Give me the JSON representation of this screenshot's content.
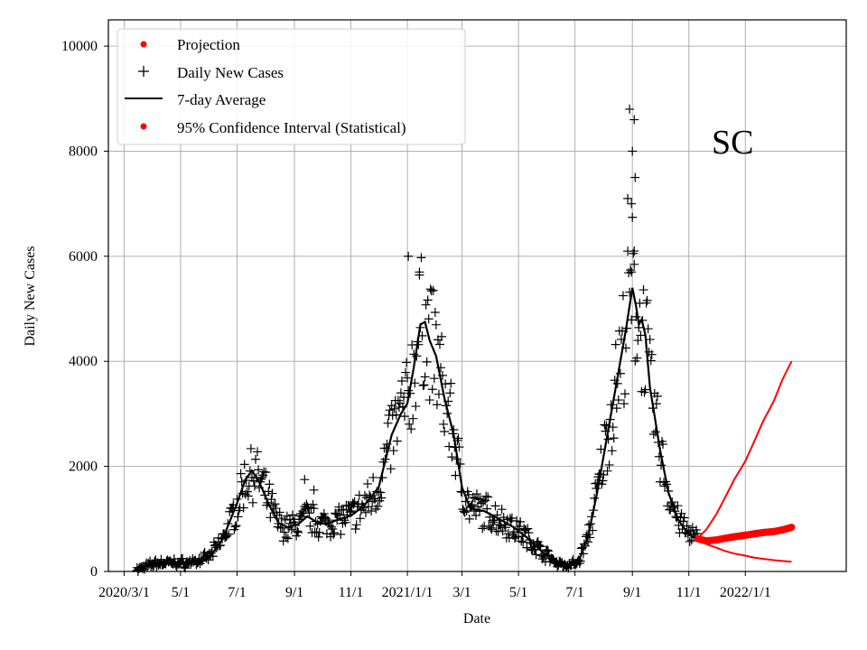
{
  "chart_data": {
    "type": "line",
    "title": "",
    "state_label": "SC",
    "xlabel": "Date",
    "ylabel": "Daily New Cases",
    "xlim": [
      "2020-02-13",
      "2022-04-20"
    ],
    "ylim": [
      0,
      10500
    ],
    "grid": true,
    "legend_position": "top-left",
    "x_ticks": [
      {
        "date": "2020-03-01",
        "label": "2020/3/1"
      },
      {
        "date": "2020-05-01",
        "label": "5/1"
      },
      {
        "date": "2020-07-01",
        "label": "7/1"
      },
      {
        "date": "2020-09-01",
        "label": "9/1"
      },
      {
        "date": "2020-11-01",
        "label": "11/1"
      },
      {
        "date": "2021-01-01",
        "label": "2021/1/1"
      },
      {
        "date": "2021-03-01",
        "label": "3/1"
      },
      {
        "date": "2021-05-01",
        "label": "5/1"
      },
      {
        "date": "2021-07-01",
        "label": "7/1"
      },
      {
        "date": "2021-09-01",
        "label": "9/1"
      },
      {
        "date": "2021-11-01",
        "label": "11/1"
      },
      {
        "date": "2022-01-01",
        "label": "2022/1/1"
      }
    ],
    "y_ticks": [
      {
        "value": 0,
        "label": "0"
      },
      {
        "value": 2000,
        "label": "2000"
      },
      {
        "value": 4000,
        "label": "4000"
      },
      {
        "value": 6000,
        "label": "6000"
      },
      {
        "value": 8000,
        "label": "8000"
      },
      {
        "value": 10000,
        "label": "10000"
      }
    ],
    "legend": [
      {
        "label": "Projection",
        "marker": "dot",
        "color": "#ff0000"
      },
      {
        "label": "Daily New Cases",
        "marker": "plus",
        "color": "#000000"
      },
      {
        "label": "7-day Average",
        "marker": "line",
        "color": "#000000"
      },
      {
        "label": "95% Confidence Interval (Statistical)",
        "marker": "dot",
        "color": "#ff0000"
      }
    ],
    "daily_cases_anchors": [
      [
        "2020-03-15",
        30
      ],
      [
        "2020-03-25",
        100
      ],
      [
        "2020-04-05",
        160
      ],
      [
        "2020-04-20",
        170
      ],
      [
        "2020-05-05",
        160
      ],
      [
        "2020-05-20",
        190
      ],
      [
        "2020-06-01",
        280
      ],
      [
        "2020-06-15",
        600
      ],
      [
        "2020-07-01",
        1250
      ],
      [
        "2020-07-10",
        1750
      ],
      [
        "2020-07-17",
        1900
      ],
      [
        "2020-07-25",
        1750
      ],
      [
        "2020-08-05",
        1300
      ],
      [
        "2020-08-15",
        900
      ],
      [
        "2020-08-25",
        820
      ],
      [
        "2020-09-05",
        900
      ],
      [
        "2020-09-15",
        1050
      ],
      [
        "2020-09-25",
        950
      ],
      [
        "2020-10-05",
        900
      ],
      [
        "2020-10-20",
        1000
      ],
      [
        "2020-11-01",
        1050
      ],
      [
        "2020-11-15",
        1250
      ],
      [
        "2020-12-01",
        1600
      ],
      [
        "2020-12-15",
        2600
      ],
      [
        "2020-12-25",
        3000
      ],
      [
        "2021-01-01",
        3200
      ],
      [
        "2021-01-08",
        3900
      ],
      [
        "2021-01-15",
        4700
      ],
      [
        "2021-01-20",
        4750
      ],
      [
        "2021-01-25",
        4400
      ],
      [
        "2021-02-01",
        4100
      ],
      [
        "2021-02-10",
        3300
      ],
      [
        "2021-02-20",
        2600
      ],
      [
        "2021-03-01",
        1600
      ],
      [
        "2021-03-10",
        1200
      ],
      [
        "2021-03-25",
        1150
      ],
      [
        "2021-04-10",
        1000
      ],
      [
        "2021-04-25",
        850
      ],
      [
        "2021-05-10",
        650
      ],
      [
        "2021-05-25",
        400
      ],
      [
        "2021-06-10",
        180
      ],
      [
        "2021-06-25",
        110
      ],
      [
        "2021-07-05",
        200
      ],
      [
        "2021-07-15",
        650
      ],
      [
        "2021-07-25",
        1500
      ],
      [
        "2021-08-05",
        2600
      ],
      [
        "2021-08-15",
        3600
      ],
      [
        "2021-08-25",
        4600
      ],
      [
        "2021-09-01",
        5400
      ],
      [
        "2021-09-05",
        5050
      ],
      [
        "2021-09-10",
        4650
      ],
      [
        "2021-09-15",
        4500
      ],
      [
        "2021-09-20",
        3500
      ],
      [
        "2021-10-01",
        2300
      ],
      [
        "2021-10-10",
        1500
      ],
      [
        "2021-10-20",
        1000
      ],
      [
        "2021-11-01",
        700
      ],
      [
        "2021-11-10",
        620
      ]
    ],
    "seven_day_average": [
      [
        "2020-03-10",
        0
      ],
      [
        "2020-03-20",
        90
      ],
      [
        "2020-04-01",
        160
      ],
      [
        "2020-04-15",
        165
      ],
      [
        "2020-05-01",
        165
      ],
      [
        "2020-05-15",
        175
      ],
      [
        "2020-06-01",
        270
      ],
      [
        "2020-06-15",
        600
      ],
      [
        "2020-07-01",
        1300
      ],
      [
        "2020-07-10",
        1750
      ],
      [
        "2020-07-17",
        1920
      ],
      [
        "2020-07-25",
        1700
      ],
      [
        "2020-08-05",
        1250
      ],
      [
        "2020-08-15",
        920
      ],
      [
        "2020-08-25",
        840
      ],
      [
        "2020-09-05",
        900
      ],
      [
        "2020-09-15",
        1050
      ],
      [
        "2020-09-25",
        940
      ],
      [
        "2020-10-05",
        900
      ],
      [
        "2020-10-20",
        1000
      ],
      [
        "2020-11-01",
        1060
      ],
      [
        "2020-11-15",
        1250
      ],
      [
        "2020-12-01",
        1600
      ],
      [
        "2020-12-15",
        2600
      ],
      [
        "2020-12-25",
        3000
      ],
      [
        "2021-01-01",
        3200
      ],
      [
        "2021-01-08",
        3900
      ],
      [
        "2021-01-15",
        4700
      ],
      [
        "2021-01-20",
        4750
      ],
      [
        "2021-01-25",
        4400
      ],
      [
        "2021-02-01",
        4100
      ],
      [
        "2021-02-10",
        3300
      ],
      [
        "2021-02-20",
        2600
      ],
      [
        "2021-03-01",
        1600
      ],
      [
        "2021-03-10",
        1200
      ],
      [
        "2021-03-25",
        1150
      ],
      [
        "2021-04-10",
        1000
      ],
      [
        "2021-04-25",
        850
      ],
      [
        "2021-05-10",
        650
      ],
      [
        "2021-05-25",
        400
      ],
      [
        "2021-06-10",
        180
      ],
      [
        "2021-06-25",
        110
      ],
      [
        "2021-07-05",
        200
      ],
      [
        "2021-07-15",
        650
      ],
      [
        "2021-07-25",
        1500
      ],
      [
        "2021-08-05",
        2600
      ],
      [
        "2021-08-15",
        3600
      ],
      [
        "2021-08-25",
        4600
      ],
      [
        "2021-09-01",
        5400
      ],
      [
        "2021-09-05",
        5050
      ],
      [
        "2021-09-08",
        4700
      ],
      [
        "2021-09-11",
        4800
      ],
      [
        "2021-09-15",
        4500
      ],
      [
        "2021-09-20",
        3500
      ],
      [
        "2021-10-01",
        2300
      ],
      [
        "2021-10-10",
        1500
      ],
      [
        "2021-10-20",
        1000
      ],
      [
        "2021-11-01",
        700
      ],
      [
        "2021-11-10",
        620
      ]
    ],
    "daily_spikes": [
      [
        "2021-08-29",
        8800
      ],
      [
        "2021-08-27",
        7100
      ],
      [
        "2021-08-31",
        7000
      ],
      [
        "2021-09-01",
        8000
      ],
      [
        "2021-09-03",
        8600
      ],
      [
        "2021-09-04",
        7500
      ],
      [
        "2021-09-03",
        6100
      ],
      [
        "2021-08-31",
        5700
      ],
      [
        "2021-01-02",
        6000
      ],
      [
        "2021-01-14",
        5700
      ],
      [
        "2020-09-12",
        1750
      ],
      [
        "2020-09-22",
        1550
      ]
    ],
    "projection": {
      "dates": [
        "2021-11-11",
        "2021-11-20",
        "2021-12-01",
        "2021-12-10",
        "2021-12-20",
        "2022-01-01",
        "2022-01-10",
        "2022-01-20",
        "2022-02-01",
        "2022-02-10",
        "2022-02-20"
      ],
      "values": [
        620,
        580,
        600,
        630,
        660,
        690,
        715,
        740,
        760,
        790,
        840
      ]
    },
    "ci_upper": {
      "dates": [
        "2021-11-11",
        "2021-11-20",
        "2021-12-01",
        "2021-12-10",
        "2021-12-20",
        "2022-01-01",
        "2022-01-10",
        "2022-01-20",
        "2022-02-01",
        "2022-02-10",
        "2022-02-20"
      ],
      "values": [
        640,
        800,
        1100,
        1400,
        1750,
        2100,
        2450,
        2850,
        3250,
        3650,
        4000
      ]
    },
    "ci_lower": {
      "dates": [
        "2021-11-11",
        "2021-11-20",
        "2021-12-01",
        "2021-12-10",
        "2021-12-20",
        "2022-01-01",
        "2022-01-10",
        "2022-01-20",
        "2022-02-01",
        "2022-02-10",
        "2022-02-20"
      ],
      "values": [
        600,
        520,
        450,
        390,
        340,
        300,
        265,
        240,
        215,
        200,
        185
      ]
    }
  }
}
